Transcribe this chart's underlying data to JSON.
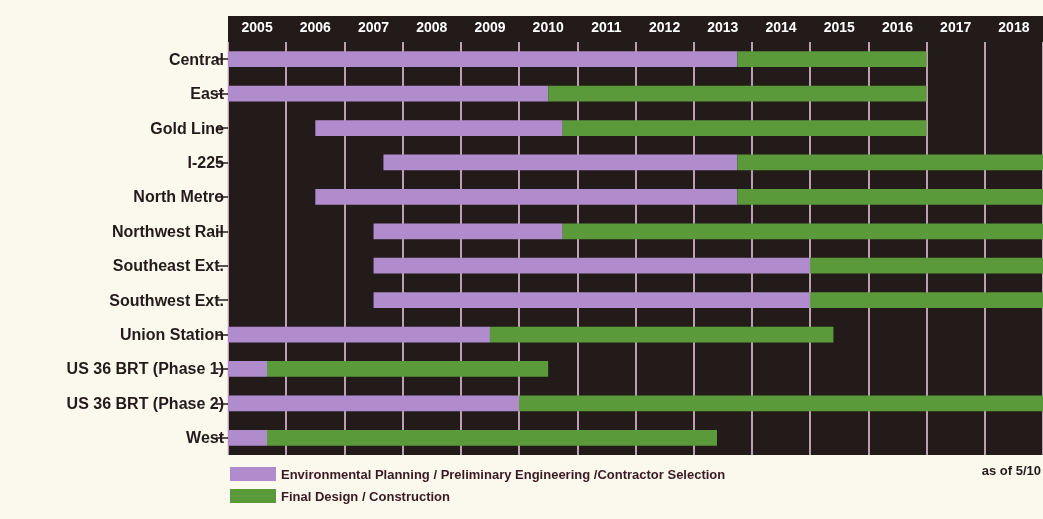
{
  "chart_data": {
    "type": "bar",
    "orientation": "horizontal",
    "categories": [
      "Central",
      "East",
      "Gold Line",
      "I-225",
      "North Metro",
      "Northwest Rail",
      "Southeast Ext.",
      "Southwest Ext.",
      "Union Station",
      "US 36 BRT (Phase 1)",
      "US 36 BRT (Phase 2)",
      "West"
    ],
    "series": [
      {
        "name": "Environmental Planning / Preliminary Engineering /Contractor Selection",
        "color": "#b08ccc",
        "base": [
          2005,
          2005,
          2006.5,
          2007.67,
          2006.5,
          2007.5,
          2007.5,
          2007.5,
          2005,
          2005,
          2005,
          2005
        ],
        "values": [
          8.75,
          5.5,
          4.25,
          6.08,
          7.25,
          3.25,
          7.5,
          7.5,
          4.5,
          0.67,
          5,
          0.67
        ]
      },
      {
        "name": "Final Design / Construction",
        "color": "#5a9a3a",
        "base": [
          2013.75,
          2010.5,
          2010.75,
          2013.75,
          2013.75,
          2010.75,
          2015,
          2015,
          2009.5,
          2005.67,
          2010,
          2005.67
        ],
        "values": [
          3.25,
          6.5,
          6.25,
          5.25,
          5.25,
          8.25,
          4,
          4,
          5.9,
          4.83,
          9,
          7.73
        ]
      }
    ],
    "xlim": [
      2005,
      2019
    ],
    "xticks": [
      {
        "value": 2005,
        "label": null
      },
      {
        "value": 2005.5,
        "label": "2005"
      },
      {
        "value": 2006,
        "label": null
      },
      {
        "value": 2006.5,
        "label": "2006"
      },
      {
        "value": 2007,
        "label": null
      },
      {
        "value": 2007.5,
        "label": "2007"
      },
      {
        "value": 2008,
        "label": null
      },
      {
        "value": 2008.5,
        "label": "2008"
      },
      {
        "value": 2009,
        "label": null
      },
      {
        "value": 2009.5,
        "label": "2009"
      },
      {
        "value": 2010,
        "label": null
      },
      {
        "value": 2010.5,
        "label": "2010"
      },
      {
        "value": 2011,
        "label": null
      },
      {
        "value": 2011.5,
        "label": "2011"
      },
      {
        "value": 2012,
        "label": null
      },
      {
        "value": 2012.5,
        "label": "2012"
      },
      {
        "value": 2013,
        "label": null
      },
      {
        "value": 2013.5,
        "label": "2013"
      },
      {
        "value": 2014,
        "label": null
      },
      {
        "value": 2014.5,
        "label": "2014"
      },
      {
        "value": 2015,
        "label": null
      },
      {
        "value": 2015.5,
        "label": "2015"
      },
      {
        "value": 2016,
        "label": null
      },
      {
        "value": 2016.5,
        "label": "2016"
      },
      {
        "value": 2017,
        "label": null
      },
      {
        "value": 2017.5,
        "label": "2017"
      },
      {
        "value": 2018,
        "label": null
      },
      {
        "value": 2018.5,
        "label": "2018"
      },
      {
        "value": 2019,
        "label": null
      }
    ],
    "grid": "x",
    "legend": "bottom left",
    "annotations": [
      "as of 5/10"
    ]
  }
}
